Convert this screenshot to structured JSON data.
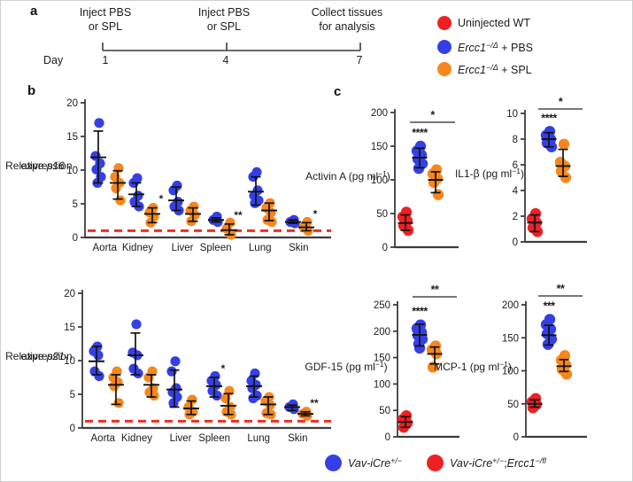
{
  "panels": {
    "a_label": "a",
    "b_label": "b",
    "c_label": "c"
  },
  "timeline": {
    "events": [
      {
        "line1": "Inject PBS",
        "line2": "or SPL"
      },
      {
        "line1": "Inject PBS",
        "line2": "or SPL"
      },
      {
        "line1": "Collect tissues",
        "line2": "for analysis"
      }
    ],
    "day_label": "Day",
    "days": [
      "1",
      "4",
      "7"
    ]
  },
  "legend_top": {
    "items": [
      {
        "color": "#ee2024",
        "parts": [
          {
            "t": "Uninjected WT"
          }
        ]
      },
      {
        "color": "#3440e6",
        "parts": [
          {
            "t": "Ercc1",
            "i": true
          },
          {
            "t": "−/Δ",
            "i": true,
            "sup": true
          },
          {
            "t": " + PBS"
          }
        ]
      },
      {
        "color": "#f6871d",
        "parts": [
          {
            "t": "Ercc1",
            "i": true
          },
          {
            "t": "−/Δ",
            "i": true,
            "sup": true
          },
          {
            "t": " + SPL"
          }
        ]
      }
    ]
  },
  "legend_bottom": {
    "items": [
      {
        "color": "#3440e6",
        "parts": [
          {
            "t": "Vav-iCre",
            "i": true
          },
          {
            "t": "+/−",
            "i": true,
            "sup": true
          }
        ]
      },
      {
        "color": "#ee2024",
        "parts": [
          {
            "t": "Vav-iCre",
            "i": true
          },
          {
            "t": "+/−",
            "i": true,
            "sup": true
          },
          {
            "t": ";"
          },
          {
            "t": "Ercc1",
            "i": true
          },
          {
            "t": "−/fl",
            "i": true,
            "sup": true
          }
        ]
      }
    ]
  },
  "colors": {
    "red": "#ee2024",
    "blue": "#3440e6",
    "orange": "#f6871d",
    "dashed_line": "#ef2e20",
    "axis": "#3c3c3c",
    "errbar": "#111111",
    "text": "#1c1c1c",
    "bar": "#4a4a4a"
  },
  "chart_data": [
    {
      "id": "p16",
      "panel": "b",
      "type": "scatter",
      "ylabel_lines": [
        [
          {
            "t": "Relative "
          },
          {
            "t": "p16",
            "i": true
          }
        ],
        [
          {
            "t": "expression"
          }
        ]
      ],
      "ylim": [
        0,
        20
      ],
      "yticks": [
        0,
        5,
        10,
        15,
        20
      ],
      "baseline": 1,
      "categories": [
        "Aorta",
        "Kidney",
        "Liver",
        "Spleen",
        "Lung",
        "Skin"
      ],
      "series": [
        {
          "name": "Ercc1−/Δ + PBS",
          "color": "blue",
          "groups": [
            {
              "dots": [
                17,
                12.1,
                11,
                10.1,
                9,
                8.1
              ],
              "mean": 11.9,
              "lo": 8.1,
              "hi": 15.8,
              "sig": ""
            },
            {
              "dots": [
                8.8,
                8.1,
                6.2,
                5.3,
                4.6
              ],
              "mean": 6.4,
              "lo": 4.6,
              "hi": 8.1,
              "sig": ""
            },
            {
              "dots": [
                7.7,
                7,
                5.3,
                4.6,
                4
              ],
              "mean": 5.5,
              "lo": 4,
              "hi": 7.5,
              "sig": ""
            },
            {
              "dots": [
                3.1,
                2.6,
                2.3
              ],
              "mean": 2.6,
              "lo": 2.3,
              "hi": 2.9,
              "sig": ""
            },
            {
              "dots": [
                9.7,
                9,
                7,
                6.2,
                5.5,
                5.1
              ],
              "mean": 6.8,
              "lo": 4.8,
              "hi": 9,
              "sig": ""
            },
            {
              "dots": [
                2.6,
                2.3,
                2.1
              ],
              "mean": 2.3,
              "lo": 2.1,
              "hi": 2.6,
              "sig": ""
            }
          ]
        },
        {
          "name": "Ercc1−/Δ + SPL",
          "color": "orange",
          "groups": [
            {
              "dots": [
                10.3,
                9,
                8.1,
                7.3,
                5.5
              ],
              "mean": 8.1,
              "lo": 5.7,
              "hi": 9.9,
              "sig": ""
            },
            {
              "dots": [
                4.4,
                3.7,
                3.1,
                2.2
              ],
              "mean": 3.5,
              "lo": 2.2,
              "hi": 4.4,
              "sig": "*"
            },
            {
              "dots": [
                4.6,
                4,
                3.3,
                2.4
              ],
              "mean": 3.5,
              "lo": 2.4,
              "hi": 4.4,
              "sig": ""
            },
            {
              "dots": [
                2.2,
                1.3,
                0.4
              ],
              "mean": 1.1,
              "lo": 0.4,
              "hi": 2,
              "sig": "**"
            },
            {
              "dots": [
                5.1,
                4.4,
                3.7,
                2.6,
                2.3
              ],
              "mean": 4,
              "lo": 2.5,
              "hi": 5.1,
              "sig": ""
            },
            {
              "dots": [
                2.3,
                1.5,
                1
              ],
              "mean": 1.5,
              "lo": 1,
              "hi": 2.2,
              "sig": "*"
            }
          ]
        }
      ]
    },
    {
      "id": "p21",
      "panel": "b",
      "type": "scatter",
      "ylabel_lines": [
        [
          {
            "t": "Relative "
          },
          {
            "t": "p21",
            "i": true
          }
        ],
        [
          {
            "t": "expression"
          }
        ]
      ],
      "ylim": [
        0,
        20
      ],
      "yticks": [
        0,
        5,
        10,
        15,
        20
      ],
      "baseline": 1,
      "categories": [
        "Aorta",
        "Kidney",
        "Liver",
        "Spleen",
        "Lung",
        "Skin"
      ],
      "series": [
        {
          "name": "Ercc1−/Δ + PBS",
          "color": "blue",
          "groups": [
            {
              "dots": [
                12.1,
                11.4,
                10.8,
                8.4,
                7.7
              ],
              "mean": 9.9,
              "lo": 7.9,
              "hi": 12.1,
              "sig": ""
            },
            {
              "dots": [
                15.4,
                11.2,
                10.8,
                8.8,
                8.1
              ],
              "mean": 10.8,
              "lo": 7.9,
              "hi": 14.1,
              "sig": ""
            },
            {
              "dots": [
                9.9,
                8.4,
                5.9,
                5.3,
                4.6,
                3.7
              ],
              "mean": 5.7,
              "lo": 3.1,
              "hi": 8.6,
              "sig": ""
            },
            {
              "dots": [
                7.7,
                7,
                6.4,
                5.5,
                4.8
              ],
              "mean": 6.2,
              "lo": 4.6,
              "hi": 7.5,
              "sig": "*"
            },
            {
              "dots": [
                8.1,
                7,
                6.4,
                5.9,
                4.8,
                4.4
              ],
              "mean": 6.2,
              "lo": 4.6,
              "hi": 7.7,
              "sig": ""
            },
            {
              "dots": [
                3.5,
                3.1,
                2.8
              ],
              "mean": 3.1,
              "lo": 2.6,
              "hi": 3.4,
              "sig": ""
            }
          ]
        },
        {
          "name": "Ercc1−/Δ + SPL",
          "color": "orange",
          "groups": [
            {
              "dots": [
                8.4,
                7.5,
                6.8,
                6.2,
                3.7
              ],
              "mean": 6.4,
              "lo": 3.5,
              "hi": 7.9,
              "sig": ""
            },
            {
              "dots": [
                8.4,
                7.5,
                5.9,
                5.3,
                4.8
              ],
              "mean": 6.4,
              "lo": 4.6,
              "hi": 7.9,
              "sig": ""
            },
            {
              "dots": [
                4.2,
                3.1,
                2.4,
                2
              ],
              "mean": 2.9,
              "lo": 2,
              "hi": 4,
              "sig": ""
            },
            {
              "dots": [
                5.5,
                4.4,
                3.1,
                2.4,
                2
              ],
              "mean": 3.3,
              "lo": 2,
              "hi": 5.1,
              "sig": ""
            },
            {
              "dots": [
                4.6,
                4,
                3.4,
                2.2,
                2
              ],
              "mean": 3.5,
              "lo": 2,
              "hi": 4.6,
              "sig": ""
            },
            {
              "dots": [
                2.4,
                2.1,
                1.8
              ],
              "mean": 2.1,
              "lo": 1.8,
              "hi": 2.4,
              "sig": "**"
            }
          ]
        }
      ]
    },
    {
      "id": "activin",
      "panel": "c",
      "type": "scatter",
      "ylabel_parts": [
        {
          "t": "Activin A (pg ml"
        },
        {
          "t": "−1",
          "sup": true
        },
        {
          "t": ")"
        }
      ],
      "ylim": [
        0,
        200
      ],
      "yticks": [
        0,
        50,
        100,
        150,
        200
      ],
      "groups": [
        {
          "name": "Uninjected WT",
          "color": "red",
          "dots": [
            52,
            45,
            39,
            32,
            25
          ],
          "mean": 36,
          "lo": 25,
          "hi": 48,
          "sig": ""
        },
        {
          "name": "Ercc1−/Δ + PBS",
          "color": "blue",
          "dots": [
            150,
            143,
            137,
            131,
            124,
            117
          ],
          "mean": 133,
          "lo": 118,
          "hi": 147,
          "sig": "****"
        },
        {
          "name": "Ercc1−/Δ + SPL",
          "color": "orange",
          "dots": [
            115,
            109,
            102,
            96,
            78
          ],
          "mean": 100,
          "lo": 81,
          "hi": 112,
          "sig": ""
        }
      ],
      "comparison": {
        "between": [
          "PBS",
          "SPL"
        ],
        "sig": "*"
      }
    },
    {
      "id": "il1b",
      "panel": "c",
      "type": "scatter",
      "ylabel_parts": [
        {
          "t": "IL1-β (pg ml"
        },
        {
          "t": "−1",
          "sup": true
        },
        {
          "t": ")"
        }
      ],
      "ylim": [
        0,
        10
      ],
      "yticks": [
        0,
        2,
        4,
        6,
        8,
        10
      ],
      "groups": [
        {
          "name": "Uninjected WT",
          "color": "red",
          "dots": [
            2.2,
            1.8,
            1.5,
            1.1,
            0.8
          ],
          "mean": 1.5,
          "lo": 0.8,
          "hi": 2.1,
          "sig": ""
        },
        {
          "name": "Ercc1−/Δ + PBS",
          "color": "blue",
          "dots": [
            8.6,
            8.3,
            8,
            7.7,
            7.4
          ],
          "mean": 8,
          "lo": 7.4,
          "hi": 8.5,
          "sig": "****"
        },
        {
          "name": "Ercc1−/Δ + SPL",
          "color": "orange",
          "dots": [
            7.6,
            6.2,
            5.9,
            5.5,
            5
          ],
          "mean": 5.9,
          "lo": 5.1,
          "hi": 7.2,
          "sig": ""
        }
      ],
      "comparison": {
        "between": [
          "PBS",
          "SPL"
        ],
        "sig": "*"
      }
    },
    {
      "id": "gdf15",
      "panel": "c",
      "type": "scatter",
      "ylabel_parts": [
        {
          "t": "GDF-15 (pg ml"
        },
        {
          "t": "−1",
          "sup": true
        },
        {
          "t": ")"
        }
      ],
      "ylim": [
        0,
        250
      ],
      "yticks": [
        0,
        50,
        100,
        150,
        200,
        250
      ],
      "groups": [
        {
          "name": "Uninjected WT",
          "color": "red",
          "dots": [
            40,
            33,
            26,
            18
          ],
          "mean": 28,
          "lo": 18,
          "hi": 38,
          "sig": ""
        },
        {
          "name": "Ercc1−/Δ + PBS",
          "color": "blue",
          "dots": [
            212,
            205,
            198,
            192,
            185,
            176,
            168
          ],
          "mean": 193,
          "lo": 172,
          "hi": 213,
          "sig": "****"
        },
        {
          "name": "Ercc1−/Δ + SPL",
          "color": "orange",
          "dots": [
            172,
            165,
            157,
            132
          ],
          "mean": 157,
          "lo": 138,
          "hi": 170,
          "sig": ""
        }
      ],
      "comparison": {
        "between": [
          "PBS",
          "SPL"
        ],
        "sig": "**"
      }
    },
    {
      "id": "mcp1",
      "panel": "c",
      "type": "scatter",
      "ylabel_parts": [
        {
          "t": "MCP-1 (pg ml"
        },
        {
          "t": "−1",
          "sup": true
        },
        {
          "t": ")"
        }
      ],
      "ylim": [
        0,
        200
      ],
      "yticks": [
        0,
        50,
        100,
        150,
        200
      ],
      "groups": [
        {
          "name": "Uninjected WT",
          "color": "red",
          "dots": [
            58,
            53,
            49,
            44
          ],
          "mean": 50,
          "lo": 45,
          "hi": 56,
          "sig": ""
        },
        {
          "name": "Ercc1−/Δ + PBS",
          "color": "blue",
          "dots": [
            178,
            170,
            163,
            156,
            148,
            140
          ],
          "mean": 154,
          "lo": 139,
          "hi": 169,
          "sig": "***"
        },
        {
          "name": "Ercc1−/Δ + SPL",
          "color": "orange",
          "dots": [
            123,
            116,
            109,
            102,
            95
          ],
          "mean": 107,
          "lo": 99,
          "hi": 117,
          "sig": ""
        }
      ],
      "comparison": {
        "between": [
          "PBS",
          "SPL"
        ],
        "sig": "**"
      }
    }
  ]
}
